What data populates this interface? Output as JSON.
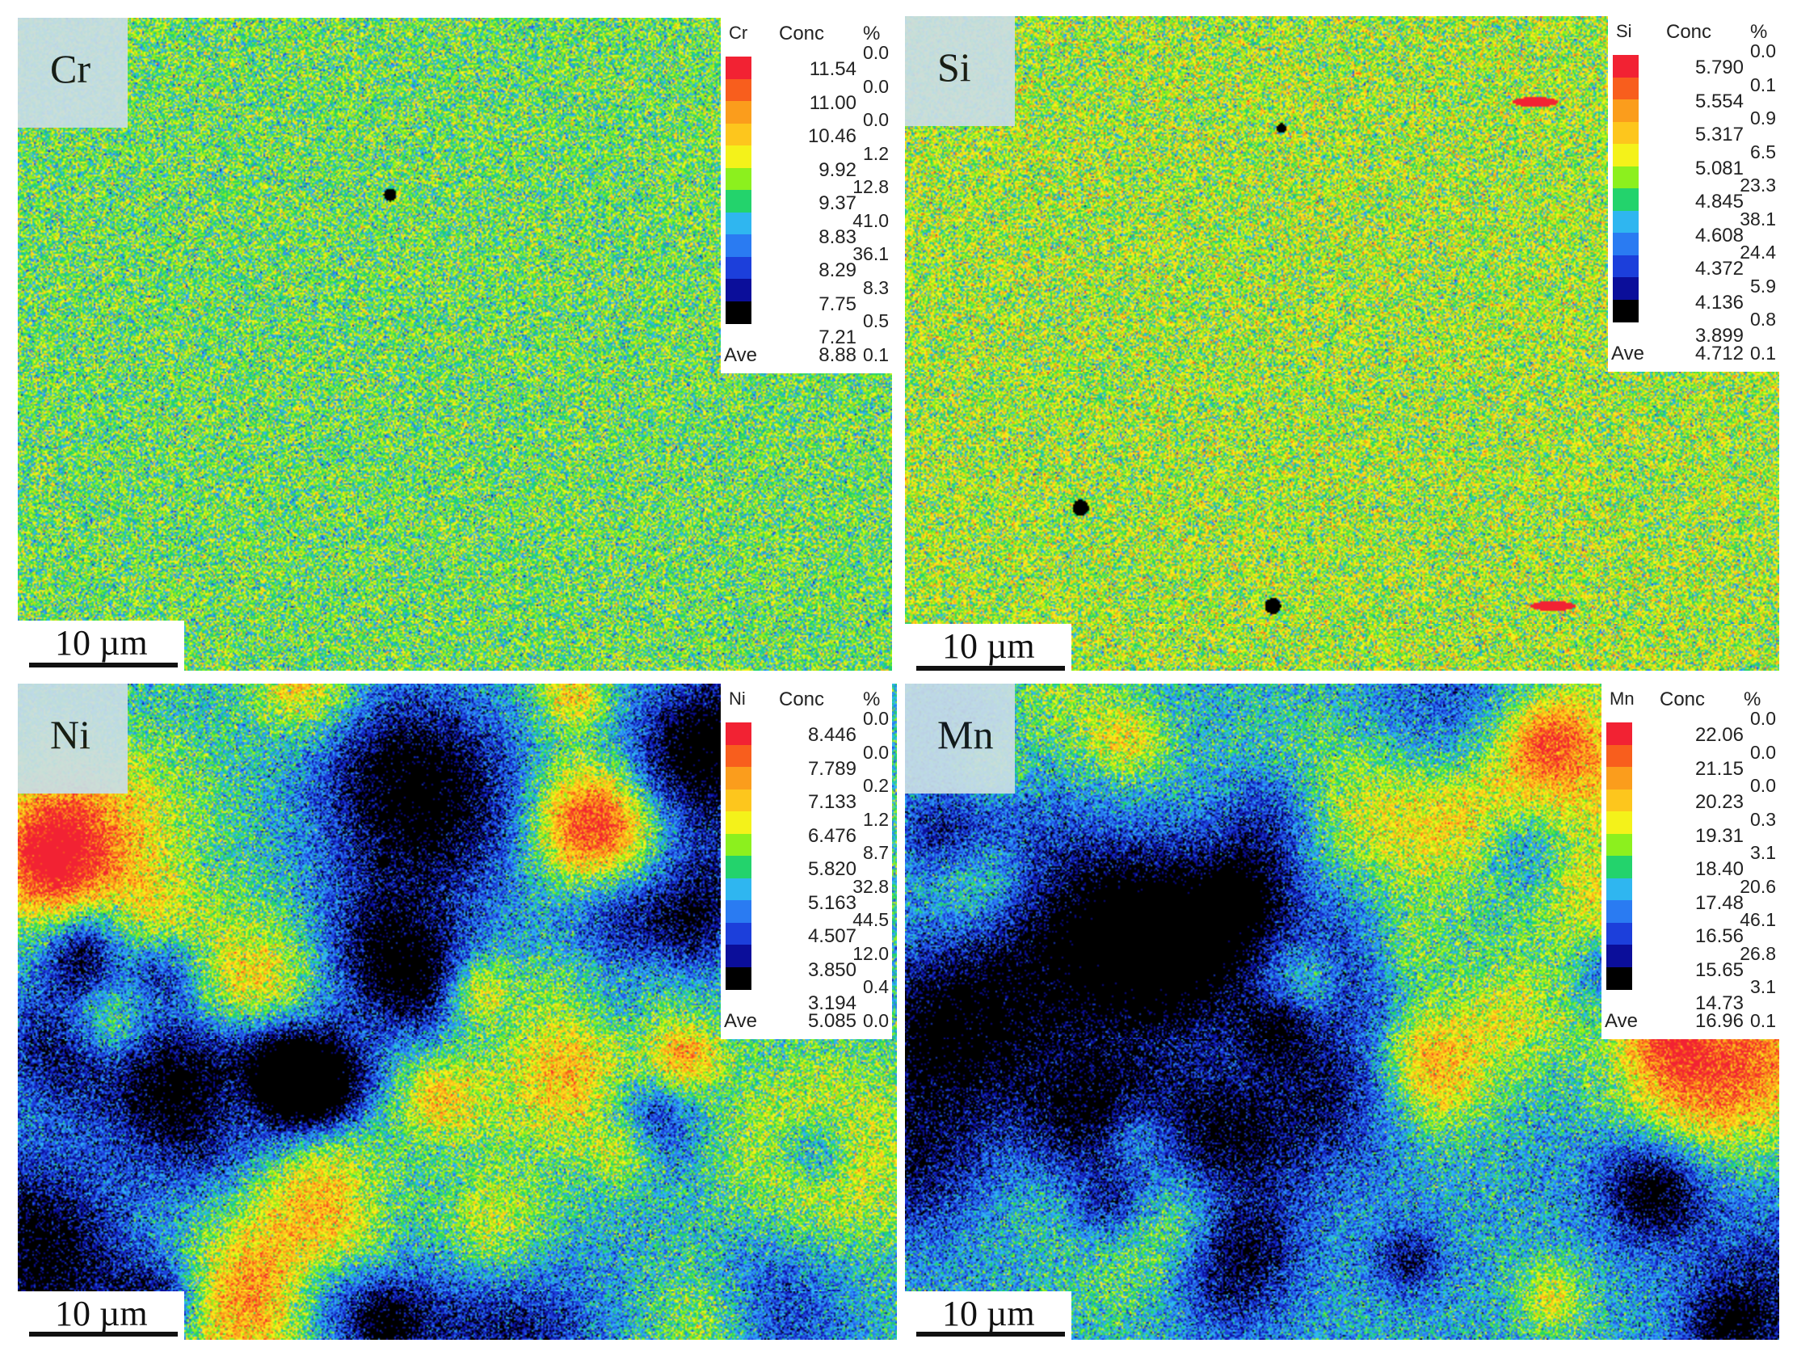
{
  "legend_headers": {
    "conc": "Conc",
    "pct": "%",
    "ave": "Ave"
  },
  "scale_label": "10 µm",
  "colormap": [
    "#000000",
    "#0b0e9a",
    "#1c3fdb",
    "#2a7bf2",
    "#2fb6f0",
    "#23d36c",
    "#8cf01e",
    "#f4f21a",
    "#fdc61d",
    "#fb9d1c",
    "#f85e1d",
    "#f22233"
  ],
  "panels": [
    {
      "element": "Cr",
      "levels": [
        "11.54",
        "11.00",
        "10.46",
        "9.92",
        "9.37",
        "8.83",
        "8.29",
        "7.75",
        "7.21"
      ],
      "percents": [
        "0.0",
        "0.0",
        "0.0",
        "1.2",
        "12.8",
        "41.0",
        "36.1",
        "8.3",
        "0.5",
        "0.1"
      ],
      "ave": "8.88"
    },
    {
      "element": "Si",
      "levels": [
        "5.790",
        "5.554",
        "5.317",
        "5.081",
        "4.845",
        "4.608",
        "4.372",
        "4.136",
        "3.899"
      ],
      "percents": [
        "0.0",
        "0.1",
        "0.9",
        "6.5",
        "23.3",
        "38.1",
        "24.4",
        "5.9",
        "0.8",
        "0.1"
      ],
      "ave": "4.712"
    },
    {
      "element": "Ni",
      "levels": [
        "8.446",
        "7.789",
        "7.133",
        "6.476",
        "5.820",
        "5.163",
        "4.507",
        "3.850",
        "3.194"
      ],
      "percents": [
        "0.0",
        "0.0",
        "0.2",
        "1.2",
        "8.7",
        "32.8",
        "44.5",
        "12.0",
        "0.4",
        "0.0"
      ],
      "ave": "5.085"
    },
    {
      "element": "Mn",
      "levels": [
        "22.06",
        "21.15",
        "20.23",
        "19.31",
        "18.40",
        "17.48",
        "16.56",
        "15.65",
        "14.73"
      ],
      "percents": [
        "0.0",
        "0.0",
        "0.0",
        "0.3",
        "3.1",
        "20.6",
        "46.1",
        "26.8",
        "3.1",
        "0.1"
      ],
      "ave": "16.96"
    }
  ]
}
